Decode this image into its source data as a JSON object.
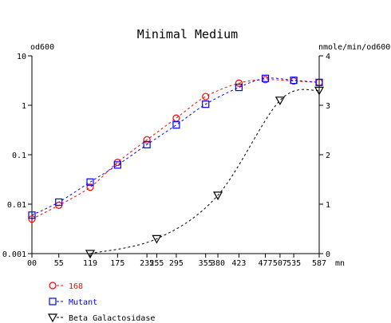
{
  "chart_data": {
    "type": "line",
    "title": "Minimal Medium",
    "y_left_label": "od600",
    "y_right_label": "nmole/min/od600",
    "x_unit": "mn",
    "x_ticks": [
      "00",
      "55",
      "119",
      "175",
      "235",
      "255",
      "295",
      "355",
      "380",
      "423",
      "477",
      "507",
      "535",
      "587"
    ],
    "y_left_scale": "log",
    "y_left_ticks": [
      "0.001",
      "0.01",
      "0.1",
      "1",
      "10"
    ],
    "y_left_lim": [
      0.001,
      10
    ],
    "y_right_ticks": [
      "0",
      "1",
      "2",
      "3",
      "4"
    ],
    "y_right_lim": [
      0,
      4
    ],
    "x_lim": [
      0,
      587
    ],
    "grid": false,
    "legend_position": "bottom-left",
    "series": [
      {
        "name": "168",
        "axis": "left",
        "color": "#ff0000",
        "marker": "circle",
        "x": [
          0,
          55,
          119,
          175,
          235,
          295,
          355,
          423,
          477,
          535,
          587
        ],
        "y": [
          0.005,
          0.0095,
          0.022,
          0.07,
          0.2,
          0.55,
          1.5,
          2.8,
          3.3,
          3.1,
          2.9
        ]
      },
      {
        "name": "Mutant",
        "axis": "left",
        "color": "#0000ff",
        "marker": "square",
        "x": [
          0,
          55,
          119,
          175,
          235,
          295,
          355,
          423,
          477,
          535,
          587
        ],
        "y": [
          0.006,
          0.011,
          0.028,
          0.062,
          0.16,
          0.4,
          1.05,
          2.3,
          3.5,
          3.2,
          2.9
        ]
      },
      {
        "name": "Beta Galactosidase",
        "axis": "right",
        "color": "#000000",
        "marker": "triangle-down",
        "x": [
          119,
          255,
          380,
          507,
          587
        ],
        "y": [
          0,
          0.3,
          1.18,
          3.1,
          3.3
        ]
      }
    ]
  }
}
